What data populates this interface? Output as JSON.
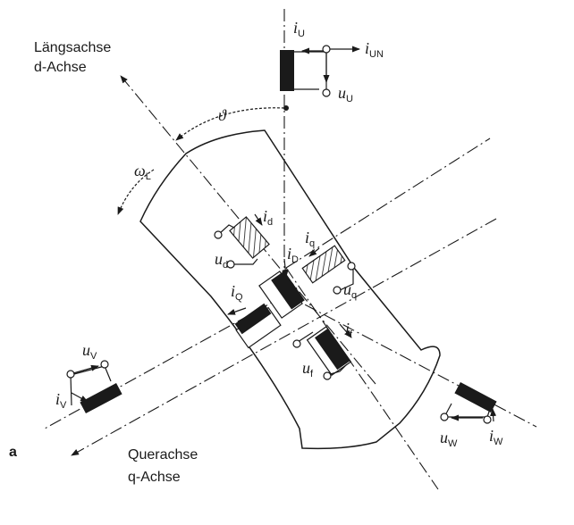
{
  "axes": {
    "d_axis_label_1": "Längsachse",
    "d_axis_label_2": "d-Achse",
    "q_axis_label_1": "Querachse",
    "q_axis_label_2": "q-Achse"
  },
  "angle": {
    "theta": "ϑ"
  },
  "speed": {
    "omega": "ω",
    "omega_sub": "L"
  },
  "phase_u": {
    "i": "i",
    "i_sub": "U",
    "iN": "i",
    "iN_sub": "UN",
    "u": "u",
    "u_sub": "U"
  },
  "phase_v": {
    "i": "i",
    "i_sub": "V",
    "u": "u",
    "u_sub": "V"
  },
  "phase_w": {
    "i": "i",
    "i_sub": "W",
    "u": "u",
    "u_sub": "W"
  },
  "winding_d": {
    "i": "i",
    "i_sub": "d",
    "u": "u",
    "u_sub": "d"
  },
  "winding_q": {
    "i": "i",
    "i_sub": "q",
    "u": "u",
    "u_sub": "q"
  },
  "winding_D": {
    "i": "i",
    "i_sub": "D"
  },
  "winding_Q": {
    "i": "i",
    "i_sub": "Q"
  },
  "winding_f": {
    "i": "i",
    "i_sub": "f",
    "u": "u",
    "u_sub": "f"
  },
  "figure_letter": "a"
}
